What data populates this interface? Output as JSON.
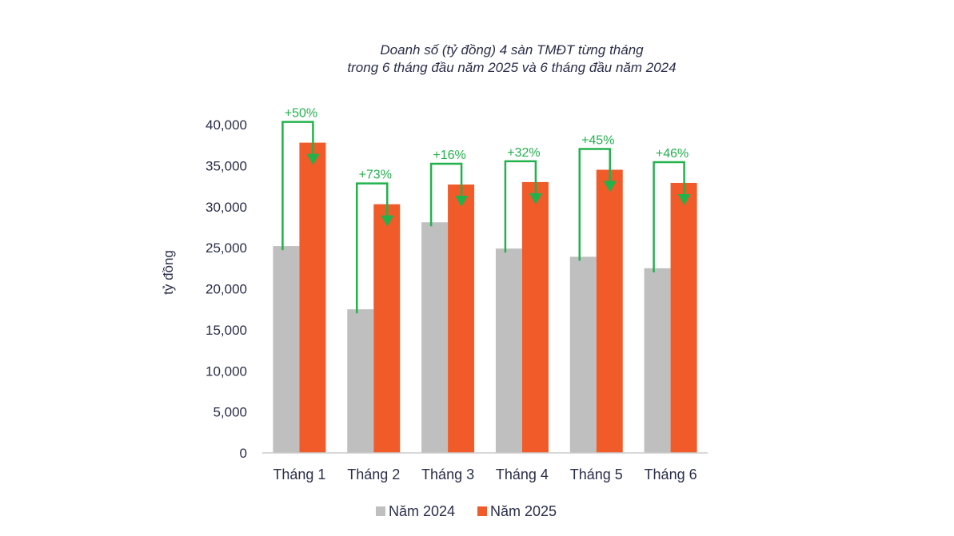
{
  "chart_data": {
    "type": "bar",
    "title": "Doanh số (tỷ đồng) 4 sàn TMĐT từng tháng",
    "subtitle": "trong 6 tháng đầu năm 2025 và 6 tháng đầu năm 2024",
    "ylabel": "tỷ đồng",
    "xlabel": "",
    "ylim": [
      0,
      40000
    ],
    "yticks": [
      "0",
      "5,000",
      "10,000",
      "15,000",
      "20,000",
      "25,000",
      "30,000",
      "35,000",
      "40,000"
    ],
    "ytick_values": [
      0,
      5000,
      10000,
      15000,
      20000,
      25000,
      30000,
      35000,
      40000
    ],
    "categories": [
      "Tháng 1",
      "Tháng 2",
      "Tháng 3",
      "Tháng 4",
      "Tháng 5",
      "Tháng 6"
    ],
    "series": [
      {
        "name": "Năm 2024",
        "color": "#bfbfbf",
        "values": [
          25200,
          17500,
          28100,
          24900,
          23900,
          22500
        ]
      },
      {
        "name": "Năm 2025",
        "color": "#f15a29",
        "values": [
          37800,
          30300,
          32700,
          33000,
          34500,
          32900
        ]
      }
    ],
    "annotations": [
      "+50%",
      "+73%",
      "+16%",
      "+32%",
      "+45%",
      "+46%"
    ],
    "annotation_color": "#22b24c",
    "legend_position": "bottom",
    "grid": false
  }
}
